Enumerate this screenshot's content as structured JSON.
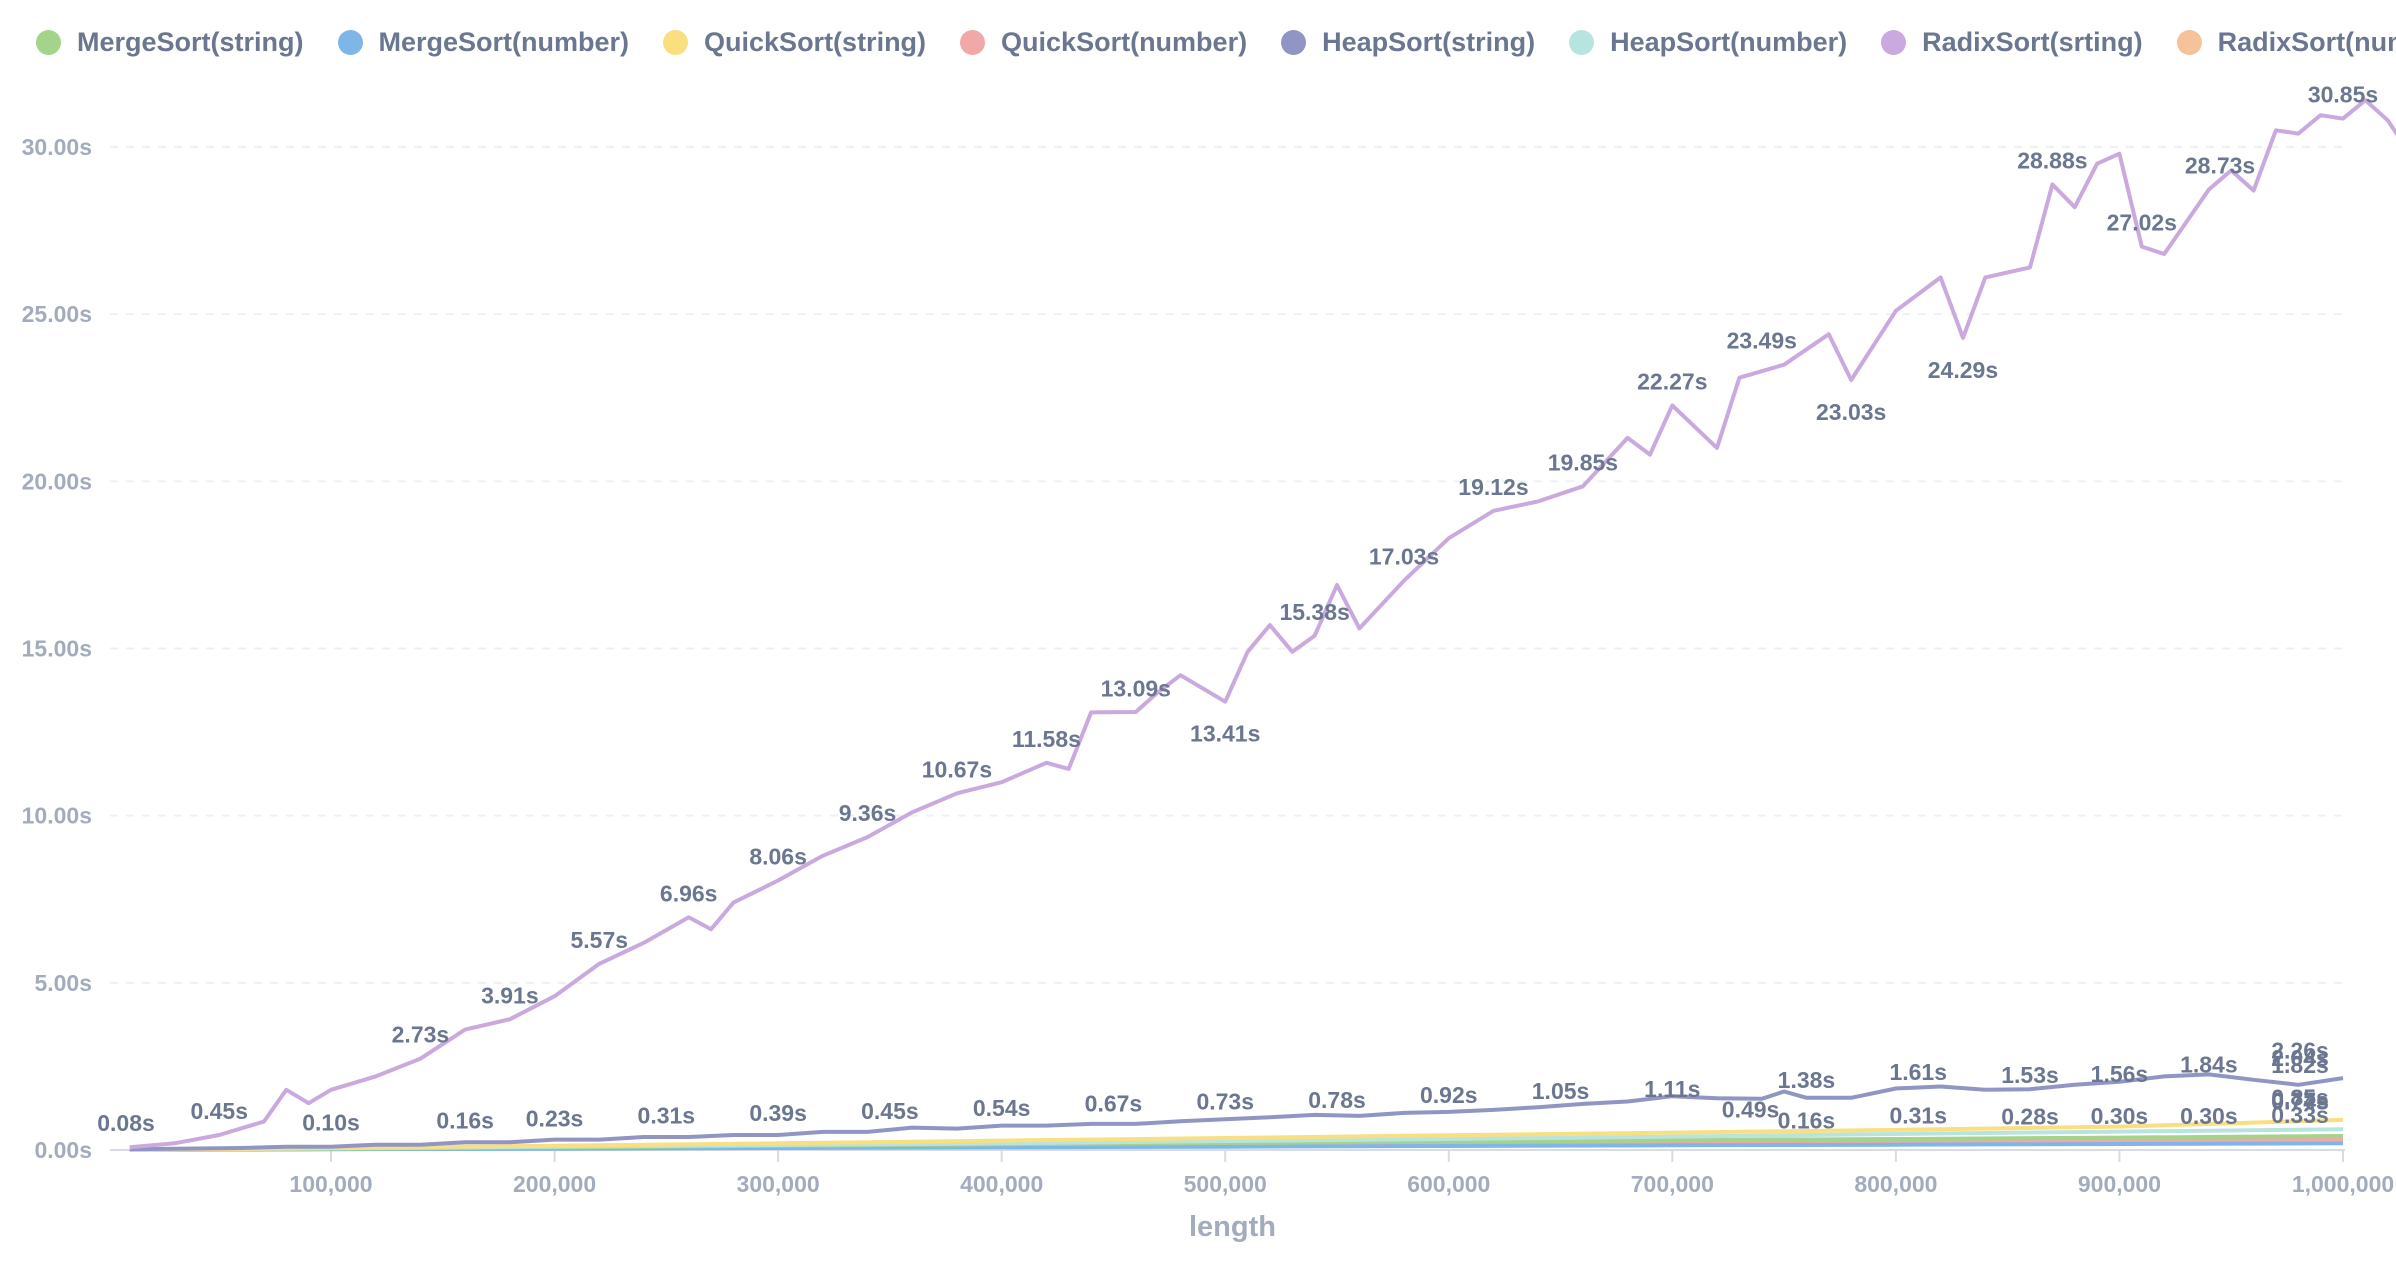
{
  "chart_data": {
    "type": "line",
    "title": "",
    "xlabel": "length",
    "ylabel": "",
    "xlim": [
      10000,
      1000000
    ],
    "ylim": [
      0,
      31
    ],
    "grid": true,
    "legend_position": "top",
    "x_ticks": [
      100000,
      200000,
      300000,
      400000,
      500000,
      600000,
      700000,
      800000,
      900000,
      1000000
    ],
    "x_tick_labels": [
      "100,000",
      "200,000",
      "300,000",
      "400,000",
      "500,000",
      "600,000",
      "700,000",
      "800,000",
      "900,000",
      "1,000,000"
    ],
    "y_ticks": [
      0,
      5,
      10,
      15,
      20,
      25,
      30
    ],
    "y_tick_labels": [
      "0.00s",
      "5.00s",
      "10.00s",
      "15.00s",
      "20.00s",
      "25.00s",
      "30.00s"
    ],
    "series": [
      {
        "name": "MergeSort(string)",
        "color": "#a3d48a",
        "points": [
          [
            10000,
            0.0
          ],
          [
            100000,
            0.04
          ],
          [
            200000,
            0.08
          ],
          [
            300000,
            0.13
          ],
          [
            400000,
            0.17
          ],
          [
            500000,
            0.21
          ],
          [
            600000,
            0.25
          ],
          [
            700000,
            0.29
          ],
          [
            800000,
            0.33
          ],
          [
            900000,
            0.37
          ],
          [
            1000000,
            0.42
          ]
        ]
      },
      {
        "name": "MergeSort(number)",
        "color": "#7fb6e8",
        "points": [
          [
            10000,
            0.0
          ],
          [
            100000,
            0.02
          ],
          [
            200000,
            0.04
          ],
          [
            300000,
            0.06
          ],
          [
            400000,
            0.08
          ],
          [
            500000,
            0.1
          ],
          [
            600000,
            0.12
          ],
          [
            700000,
            0.14
          ],
          [
            800000,
            0.16
          ],
          [
            900000,
            0.18
          ],
          [
            1000000,
            0.2
          ]
        ]
      },
      {
        "name": "QuickSort(string)",
        "color": "#f9df80",
        "points": [
          [
            10000,
            0.0
          ],
          [
            100000,
            0.06
          ],
          [
            200000,
            0.13
          ],
          [
            300000,
            0.2
          ],
          [
            400000,
            0.28
          ],
          [
            500000,
            0.36
          ],
          [
            600000,
            0.44
          ],
          [
            700000,
            0.52
          ],
          [
            800000,
            0.6
          ],
          [
            900000,
            0.7
          ],
          [
            1000000,
            0.9
          ]
        ]
      },
      {
        "name": "QuickSort(number)",
        "color": "#f0a8a8",
        "points": [
          [
            10000,
            0.0
          ],
          [
            100000,
            0.03
          ],
          [
            200000,
            0.06
          ],
          [
            300000,
            0.1
          ],
          [
            400000,
            0.13
          ],
          [
            500000,
            0.16
          ],
          [
            600000,
            0.2
          ],
          [
            700000,
            0.24
          ],
          [
            800000,
            0.27
          ],
          [
            900000,
            0.3
          ],
          [
            1000000,
            0.33
          ]
        ]
      },
      {
        "name": "HeapSort(string)",
        "color": "#9095c3",
        "points": [
          [
            10000,
            0.02
          ],
          [
            60000,
            0.06
          ],
          [
            80000,
            0.1
          ],
          [
            100000,
            0.1
          ],
          [
            120000,
            0.16
          ],
          [
            140000,
            0.16
          ],
          [
            160000,
            0.23
          ],
          [
            180000,
            0.23
          ],
          [
            200000,
            0.31
          ],
          [
            220000,
            0.31
          ],
          [
            240000,
            0.39
          ],
          [
            260000,
            0.39
          ],
          [
            280000,
            0.45
          ],
          [
            300000,
            0.45
          ],
          [
            320000,
            0.54
          ],
          [
            340000,
            0.54
          ],
          [
            360000,
            0.67
          ],
          [
            380000,
            0.64
          ],
          [
            400000,
            0.73
          ],
          [
            420000,
            0.73
          ],
          [
            440000,
            0.78
          ],
          [
            460000,
            0.78
          ],
          [
            480000,
            0.86
          ],
          [
            500000,
            0.92
          ],
          [
            520000,
            0.98
          ],
          [
            540000,
            1.05
          ],
          [
            560000,
            1.02
          ],
          [
            580000,
            1.11
          ],
          [
            600000,
            1.14
          ],
          [
            620000,
            1.2
          ],
          [
            640000,
            1.28
          ],
          [
            660000,
            1.38
          ],
          [
            680000,
            1.45
          ],
          [
            700000,
            1.61
          ],
          [
            720000,
            1.55
          ],
          [
            740000,
            1.53
          ],
          [
            750000,
            1.75
          ],
          [
            760000,
            1.56
          ],
          [
            780000,
            1.56
          ],
          [
            800000,
            1.84
          ],
          [
            820000,
            1.9
          ],
          [
            840000,
            1.8
          ],
          [
            860000,
            1.82
          ],
          [
            880000,
            1.95
          ],
          [
            900000,
            2.04
          ],
          [
            920000,
            2.2
          ],
          [
            940000,
            2.26
          ],
          [
            960000,
            2.1
          ],
          [
            980000,
            1.95
          ],
          [
            1000000,
            2.15
          ]
        ]
      },
      {
        "name": "HeapSort(number)",
        "color": "#b8e4e0",
        "points": [
          [
            10000,
            0.0
          ],
          [
            100000,
            0.05
          ],
          [
            200000,
            0.1
          ],
          [
            300000,
            0.15
          ],
          [
            400000,
            0.2
          ],
          [
            500000,
            0.27
          ],
          [
            600000,
            0.33
          ],
          [
            700000,
            0.4
          ],
          [
            800000,
            0.48
          ],
          [
            900000,
            0.55
          ],
          [
            1000000,
            0.62
          ]
        ]
      },
      {
        "name": "RadixSort(srting)",
        "color": "#c9a9de",
        "points": [
          [
            10000,
            0.08
          ],
          [
            30000,
            0.2
          ],
          [
            50000,
            0.45
          ],
          [
            70000,
            0.85
          ],
          [
            80000,
            1.8
          ],
          [
            90000,
            1.4
          ],
          [
            100000,
            1.8
          ],
          [
            120000,
            2.2
          ],
          [
            140000,
            2.73
          ],
          [
            160000,
            3.6
          ],
          [
            180000,
            3.91
          ],
          [
            200000,
            4.6
          ],
          [
            220000,
            5.57
          ],
          [
            240000,
            6.2
          ],
          [
            260000,
            6.96
          ],
          [
            270000,
            6.6
          ],
          [
            280000,
            7.4
          ],
          [
            300000,
            8.06
          ],
          [
            320000,
            8.8
          ],
          [
            340000,
            9.36
          ],
          [
            360000,
            10.1
          ],
          [
            380000,
            10.67
          ],
          [
            400000,
            11.0
          ],
          [
            420000,
            11.58
          ],
          [
            430000,
            11.4
          ],
          [
            440000,
            13.09
          ],
          [
            460000,
            13.1
          ],
          [
            470000,
            13.7
          ],
          [
            480000,
            14.2
          ],
          [
            500000,
            13.41
          ],
          [
            510000,
            14.9
          ],
          [
            520000,
            15.7
          ],
          [
            530000,
            14.9
          ],
          [
            540000,
            15.38
          ],
          [
            550000,
            16.9
          ],
          [
            560000,
            15.6
          ],
          [
            580000,
            17.03
          ],
          [
            600000,
            18.3
          ],
          [
            620000,
            19.12
          ],
          [
            640000,
            19.4
          ],
          [
            660000,
            19.85
          ],
          [
            680000,
            21.3
          ],
          [
            690000,
            20.8
          ],
          [
            700000,
            22.27
          ],
          [
            720000,
            21.0
          ],
          [
            730000,
            23.1
          ],
          [
            750000,
            23.49
          ],
          [
            770000,
            24.4
          ],
          [
            780000,
            23.03
          ],
          [
            800000,
            25.1
          ],
          [
            820000,
            26.1
          ],
          [
            830000,
            24.29
          ],
          [
            840000,
            26.1
          ],
          [
            860000,
            26.4
          ],
          [
            870000,
            28.88
          ],
          [
            880000,
            28.2
          ],
          [
            890000,
            29.5
          ],
          [
            900000,
            29.8
          ],
          [
            910000,
            27.02
          ],
          [
            920000,
            26.8
          ],
          [
            940000,
            28.73
          ],
          [
            950000,
            29.3
          ],
          [
            960000,
            28.7
          ],
          [
            970000,
            30.5
          ],
          [
            980000,
            30.4
          ],
          [
            990000,
            30.95
          ],
          [
            1000000,
            30.85
          ],
          [
            1010000,
            31.4
          ],
          [
            1020000,
            30.8
          ],
          [
            1030000,
            29.8
          ]
        ]
      },
      {
        "name": "RadixSort(number)",
        "color": "#f6c29a",
        "points": [
          [
            10000,
            0.0
          ],
          [
            100000,
            0.03
          ],
          [
            200000,
            0.06
          ],
          [
            300000,
            0.09
          ],
          [
            400000,
            0.12
          ],
          [
            500000,
            0.15
          ],
          [
            600000,
            0.18
          ],
          [
            700000,
            0.21
          ],
          [
            800000,
            0.24
          ],
          [
            900000,
            0.27
          ],
          [
            1000000,
            0.3
          ]
        ]
      }
    ],
    "annotations": [
      {
        "x": 10000,
        "y": 0.08,
        "text": "0.08s"
      },
      {
        "x": 50000,
        "y": 0.45,
        "text": "0.45s"
      },
      {
        "x": 140000,
        "y": 2.73,
        "text": "2.73s"
      },
      {
        "x": 180000,
        "y": 3.91,
        "text": "3.91s"
      },
      {
        "x": 220000,
        "y": 5.57,
        "text": "5.57s"
      },
      {
        "x": 260000,
        "y": 6.96,
        "text": "6.96s"
      },
      {
        "x": 300000,
        "y": 8.06,
        "text": "8.06s"
      },
      {
        "x": 340000,
        "y": 9.36,
        "text": "9.36s"
      },
      {
        "x": 380000,
        "y": 10.67,
        "text": "10.67s"
      },
      {
        "x": 420000,
        "y": 11.58,
        "text": "11.58s"
      },
      {
        "x": 460000,
        "y": 13.09,
        "text": "13.09s"
      },
      {
        "x": 500000,
        "y": 13.41,
        "text": "13.41s",
        "below": true
      },
      {
        "x": 540000,
        "y": 15.38,
        "text": "15.38s"
      },
      {
        "x": 580000,
        "y": 17.03,
        "text": "17.03s"
      },
      {
        "x": 620000,
        "y": 19.12,
        "text": "19.12s"
      },
      {
        "x": 660000,
        "y": 19.85,
        "text": "19.85s"
      },
      {
        "x": 700000,
        "y": 22.27,
        "text": "22.27s"
      },
      {
        "x": 740000,
        "y": 23.49,
        "text": "23.49s"
      },
      {
        "x": 780000,
        "y": 23.03,
        "text": "23.03s",
        "below": true
      },
      {
        "x": 830000,
        "y": 24.29,
        "text": "24.29s",
        "below": true
      },
      {
        "x": 870000,
        "y": 28.88,
        "text": "28.88s"
      },
      {
        "x": 910000,
        "y": 27.02,
        "text": "27.02s"
      },
      {
        "x": 945000,
        "y": 28.73,
        "text": "28.73s"
      },
      {
        "x": 1000000,
        "y": 30.85,
        "text": "30.85s"
      },
      {
        "x": 100000,
        "y": 0.1,
        "text": "0.10s"
      },
      {
        "x": 160000,
        "y": 0.16,
        "text": "0.16s"
      },
      {
        "x": 200000,
        "y": 0.23,
        "text": "0.23s"
      },
      {
        "x": 250000,
        "y": 0.31,
        "text": "0.31s"
      },
      {
        "x": 300000,
        "y": 0.39,
        "text": "0.39s"
      },
      {
        "x": 350000,
        "y": 0.45,
        "text": "0.45s"
      },
      {
        "x": 400000,
        "y": 0.54,
        "text": "0.54s"
      },
      {
        "x": 450000,
        "y": 0.67,
        "text": "0.67s"
      },
      {
        "x": 500000,
        "y": 0.73,
        "text": "0.73s"
      },
      {
        "x": 550000,
        "y": 0.78,
        "text": "0.78s"
      },
      {
        "x": 600000,
        "y": 0.92,
        "text": "0.92s"
      },
      {
        "x": 650000,
        "y": 1.05,
        "text": "1.05s"
      },
      {
        "x": 700000,
        "y": 1.11,
        "text": "1.11s"
      },
      {
        "x": 735000,
        "y": 0.49,
        "text": "0.49s"
      },
      {
        "x": 760000,
        "y": 1.38,
        "text": "1.38s"
      },
      {
        "x": 810000,
        "y": 1.61,
        "text": "1.61s"
      },
      {
        "x": 860000,
        "y": 1.53,
        "text": "1.53s"
      },
      {
        "x": 900000,
        "y": 1.56,
        "text": "1.56s"
      },
      {
        "x": 940000,
        "y": 1.84,
        "text": "1.84s"
      },
      {
        "x": 985000,
        "y": 1.82,
        "text": "1.82s"
      },
      {
        "x": 1025000,
        "y": 2.04,
        "text": "2.04s"
      },
      {
        "x": 1075000,
        "y": 2.26,
        "text": "2.26s"
      },
      {
        "x": 760000,
        "y": 0.16,
        "text": "0.16s"
      },
      {
        "x": 810000,
        "y": 0.31,
        "text": "0.31s"
      },
      {
        "x": 860000,
        "y": 0.28,
        "text": "0.28s"
      },
      {
        "x": 900000,
        "y": 0.3,
        "text": "0.30s"
      },
      {
        "x": 940000,
        "y": 0.3,
        "text": "0.30s"
      },
      {
        "x": 985000,
        "y": 0.33,
        "text": "0.33s"
      },
      {
        "x": 1025000,
        "y": 0.74,
        "text": "0.74s"
      },
      {
        "x": 1075000,
        "y": 0.77,
        "text": "0.77s"
      },
      {
        "x": 1120000,
        "y": 0.85,
        "text": "0.85s"
      }
    ]
  }
}
